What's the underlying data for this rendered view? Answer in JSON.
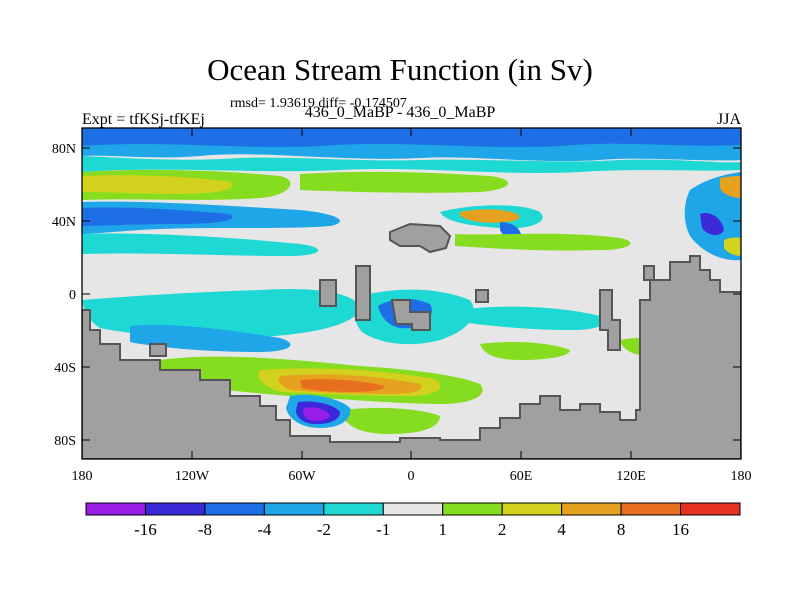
{
  "title": "Ocean Stream Function (in Sv)",
  "stats_line": "rmsd= 1.93619 diff= -0.174507",
  "left_label": "Expt = tfKSj-tfKEj",
  "center_label": "436_0_MaBP - 436_0_MaBP",
  "right_label": "JJA",
  "chart_data": {
    "type": "heatmap",
    "title": "Ocean Stream Function (in Sv)",
    "variable": "Ocean Stream Function (Sv), difference field",
    "x_axis": {
      "range": [
        -180,
        180
      ],
      "ticks": [
        -180,
        -120,
        -60,
        0,
        60,
        120,
        180
      ],
      "tick_labels": [
        "180",
        "120W",
        "60W",
        "0",
        "60E",
        "120E",
        "180"
      ]
    },
    "y_axis": {
      "range": [
        -90,
        90
      ],
      "ticks": [
        80,
        40,
        0,
        -40,
        -80
      ],
      "tick_labels": [
        "80N",
        "40N",
        "0",
        "40S",
        "80S"
      ]
    },
    "colorbar": {
      "boundaries": [
        -16,
        -8,
        -4,
        -2,
        -1,
        1,
        2,
        4,
        8,
        16
      ],
      "labels": [
        "-16",
        "-8",
        "-4",
        "-2",
        "-1",
        "1",
        "2",
        "4",
        "8",
        "16"
      ],
      "colors": [
        "#9a1ee8",
        "#3b28d8",
        "#1e6fe6",
        "#1ea6e8",
        "#1ed8d4",
        "#e6e6e6",
        "#86dc1e",
        "#d2d21e",
        "#e6a21e",
        "#e66e1e",
        "#e6321e"
      ]
    }
  },
  "colors": {
    "land": "#a0a0a0",
    "neutral": "#e6e6e6",
    "coastline": "#555555"
  }
}
